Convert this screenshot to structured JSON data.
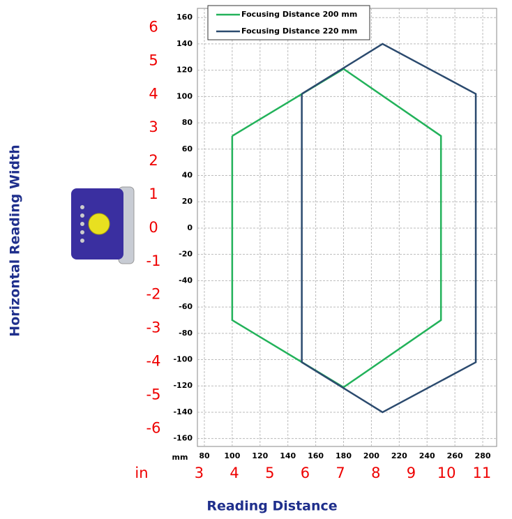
{
  "chart_data": {
    "type": "line",
    "x_label": "Reading Distance",
    "y_label": "Horizontal Reading Width",
    "x_unit_mm": "mm",
    "x_unit_in": "in",
    "xlim": [
      75,
      290
    ],
    "ylim": [
      -166,
      167
    ],
    "xticks": [
      80,
      100,
      120,
      140,
      160,
      180,
      200,
      220,
      240,
      260,
      280
    ],
    "yticks": [
      160,
      140,
      120,
      100,
      80,
      60,
      40,
      20,
      0,
      -20,
      -40,
      -60,
      -80,
      -100,
      -120,
      -140,
      -160
    ],
    "x_inch_ticks": [
      3,
      4,
      5,
      6,
      7,
      8,
      9,
      10,
      11
    ],
    "y_inch_ticks": [
      6,
      5,
      4,
      3,
      2,
      1,
      0,
      -1,
      -2,
      -3,
      -4,
      -5,
      -6
    ],
    "grid": true,
    "series": [
      {
        "name": "Focusing Distance 200 mm",
        "color": "#22b25a",
        "x": [
          100,
          180,
          250,
          250,
          180,
          100,
          100
        ],
        "y": [
          70,
          121,
          70,
          -70,
          -121,
          -70,
          70
        ]
      },
      {
        "name": "Focusing Distance 220 mm",
        "color": "#2b4a6e",
        "x": [
          150,
          208,
          275,
          275,
          208,
          150,
          150
        ],
        "y": [
          102,
          140,
          102,
          -102,
          -140,
          -102,
          102
        ]
      }
    ]
  }
}
